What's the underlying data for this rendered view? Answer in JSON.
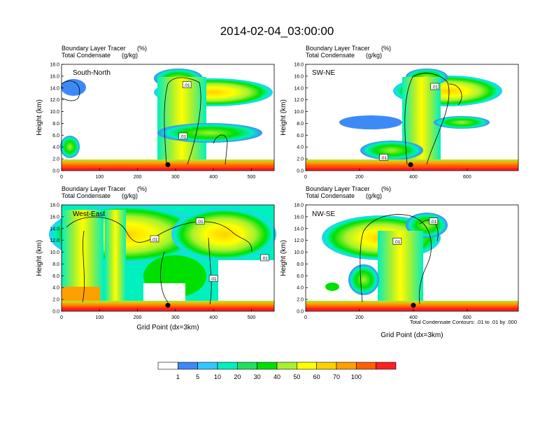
{
  "figure": {
    "title": "2014-02-04_03:00:00",
    "xlabel": "Grid Point (dx=3km)",
    "ylabel": "Height (km)",
    "contour_note": "Total Condensate Contours: .01 to .01 by .000",
    "contour_label": ".01",
    "subtitle_left_1": "Boundary Layer Tracer",
    "subtitle_right_1": "(%)",
    "subtitle_left_2": "Total Condensate",
    "subtitle_right_2": "(g/kg)"
  },
  "colorbar": {
    "colors": [
      "#ffffff",
      "#3d8af7",
      "#30c8ff",
      "#00f0c0",
      "#20e060",
      "#00e000",
      "#a8f030",
      "#ffff00",
      "#ffd000",
      "#ffa000",
      "#ff6000",
      "#ff2020"
    ],
    "labels": [
      "1",
      "5",
      "10",
      "20",
      "30",
      "40",
      "50",
      "60",
      "70",
      "100"
    ]
  },
  "chart_data": [
    {
      "type": "heatmap",
      "panel_label": "South-North",
      "x_ticks": [
        "0",
        "100",
        "200",
        "300",
        "400",
        "500"
      ],
      "xlim": [
        0,
        560
      ],
      "y_ticks": [
        "0.0",
        "2.0",
        "4.0",
        "6.0",
        "8.0",
        "10.0",
        "12.0",
        "14.0",
        "16.0",
        "18.0"
      ],
      "ylim": [
        0,
        18
      ],
      "marker_x": 280,
      "marker_y": 1.0,
      "contour_labels": [
        {
          "x": 330,
          "y": 14.5
        },
        {
          "x": 320,
          "y": 5.8
        }
      ]
    },
    {
      "type": "heatmap",
      "panel_label": "SW-NE",
      "x_ticks": [
        "0",
        "200",
        "400",
        "600"
      ],
      "xlim": [
        0,
        790
      ],
      "y_ticks": [
        "0.0",
        "2.0",
        "4.0",
        "6.0",
        "8.0",
        "10.0",
        "12.0",
        "14.0",
        "16.0",
        "18.0"
      ],
      "ylim": [
        0,
        18
      ],
      "marker_x": 390,
      "marker_y": 1.0,
      "contour_labels": [
        {
          "x": 480,
          "y": 14.2
        },
        {
          "x": 290,
          "y": 2.2
        }
      ]
    },
    {
      "type": "heatmap",
      "panel_label": "West-East",
      "x_ticks": [
        "0",
        "100",
        "200",
        "300",
        "400",
        "500"
      ],
      "xlim": [
        0,
        560
      ],
      "y_ticks": [
        "0.0",
        "2.0",
        "4.0",
        "6.0",
        "8.0",
        "10.0",
        "12.0",
        "14.0",
        "16.0",
        "18.0"
      ],
      "ylim": [
        0,
        18
      ],
      "marker_x": 280,
      "marker_y": 1.0,
      "contour_labels": [
        {
          "x": 365,
          "y": 15.2
        },
        {
          "x": 245,
          "y": 12.2
        },
        {
          "x": 400,
          "y": 5.5
        },
        {
          "x": 535,
          "y": 9.0
        }
      ]
    },
    {
      "type": "heatmap",
      "panel_label": "NW-SE",
      "x_ticks": [
        "0",
        "200",
        "400",
        "600"
      ],
      "xlim": [
        0,
        790
      ],
      "y_ticks": [
        "0.0",
        "2.0",
        "4.0",
        "6.0",
        "8.0",
        "10.0",
        "12.0",
        "14.0",
        "16.0",
        "18.0"
      ],
      "ylim": [
        0,
        18
      ],
      "marker_x": 400,
      "marker_y": 1.0,
      "contour_labels": [
        {
          "x": 475,
          "y": 15.2
        },
        {
          "x": 340,
          "y": 11.8
        }
      ]
    }
  ]
}
